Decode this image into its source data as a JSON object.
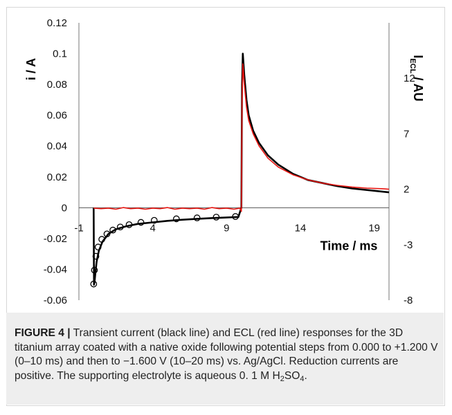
{
  "chart_data": {
    "type": "line",
    "xlabel": "Time / ms",
    "ylabel": "i / A",
    "y2label_main": "I",
    "y2label_sub": "ECL",
    "y2label_tail": " / AU",
    "xlim": [
      -1,
      20
    ],
    "ylim": [
      -0.06,
      0.12
    ],
    "y2lim": [
      -8,
      17
    ],
    "xticks": [
      -1,
      4,
      9,
      14,
      19
    ],
    "xtick_labels": [
      "-1",
      "4",
      "9",
      "14",
      "19"
    ],
    "yticks": [
      0.12,
      0.1,
      0.08,
      0.06,
      0.04,
      0.02,
      0,
      -0.02,
      -0.04,
      -0.06
    ],
    "ytick_labels": [
      "0.12",
      "0.1",
      "0.08",
      "0.06",
      "0.04",
      "0.02",
      "0",
      "-0.02",
      "-0.04",
      "-0.06"
    ],
    "y2ticks": [
      12,
      7,
      2,
      -3,
      -8
    ],
    "y2tick_labels": [
      "12",
      "7",
      "2",
      "-3",
      "-8"
    ],
    "grid": false,
    "series": [
      {
        "color": "#000000",
        "axis": "left",
        "x": [
          0,
          0.02,
          0.06,
          0.12,
          0.2,
          0.35,
          0.6,
          1,
          1.5,
          2.2,
          3,
          4,
          5,
          6,
          7,
          8,
          9,
          9.8,
          10,
          10.05,
          10.1,
          10.2,
          10.35,
          10.5,
          10.8,
          11.2,
          11.8,
          12.5,
          13.5,
          14.5,
          15.5,
          16.5,
          17.5,
          18.5,
          19.5,
          20
        ],
        "y": [
          0,
          -0.05,
          -0.048,
          -0.042,
          -0.035,
          -0.028,
          -0.022,
          -0.017,
          -0.014,
          -0.012,
          -0.0105,
          -0.0095,
          -0.0085,
          -0.0078,
          -0.0072,
          -0.0067,
          -0.0063,
          -0.006,
          0,
          0.08,
          0.1,
          0.086,
          0.07,
          0.06,
          0.05,
          0.042,
          0.034,
          0.028,
          0.022,
          0.018,
          0.016,
          0.014,
          0.0125,
          0.0115,
          0.0105,
          0.01
        ]
      },
      {
        "color": "#e8140f",
        "axis": "right",
        "x": [
          0,
          0.5,
          1,
          1.5,
          2,
          2.5,
          3,
          3.5,
          4,
          4.5,
          5,
          5.5,
          6,
          6.5,
          7,
          7.5,
          8,
          8.5,
          9,
          9.5,
          9.9,
          10,
          10.05,
          10.1,
          10.2,
          10.35,
          10.5,
          10.8,
          11.2,
          11.8,
          12.5,
          13.5,
          14.5,
          15.5,
          16.5,
          17.5,
          18.5,
          19.5,
          20
        ],
        "y": [
          0.3,
          0.25,
          0.3,
          0.2,
          0.35,
          0.25,
          0.3,
          0.2,
          0.3,
          0.25,
          0.35,
          0.2,
          0.3,
          0.25,
          0.3,
          0.2,
          0.35,
          0.25,
          0.3,
          0.2,
          0.3,
          0,
          10,
          13.3,
          11.5,
          9.4,
          8.2,
          7,
          5.9,
          4.8,
          4,
          3.3,
          2.85,
          2.55,
          2.35,
          2.2,
          2.1,
          2.05,
          2
        ]
      },
      {
        "type": "scatter",
        "color": "#000000",
        "marker": "open-circle",
        "axis": "left",
        "x": [
          0,
          0.05,
          0.15,
          0.3,
          0.55,
          0.9,
          1.3,
          1.8,
          2.4,
          3.2,
          4.1,
          5.6,
          7,
          8.3,
          9.6
        ],
        "y": [
          -0.0495,
          -0.0405,
          -0.0315,
          -0.0255,
          -0.0205,
          -0.017,
          -0.0145,
          -0.0125,
          -0.011,
          -0.0095,
          -0.0082,
          -0.0072,
          -0.0066,
          -0.0061,
          -0.0057
        ]
      }
    ]
  },
  "caption": {
    "label": "FIGURE 4 |",
    "text_1": " Transient current (black line) and ECL (red line) responses for the 3D titanium array coated with a native oxide following potential steps from 0.000 to +1.200 V (0–10 ms) and then to −1.600 V (10–20 ms) vs. Ag/AgCl. Reduction currents are positive. The supporting electrolyte is aqueous 0. 1 M H",
    "sub_1": "2",
    "text_2": "SO",
    "sub_2": "4",
    "text_3": "."
  }
}
